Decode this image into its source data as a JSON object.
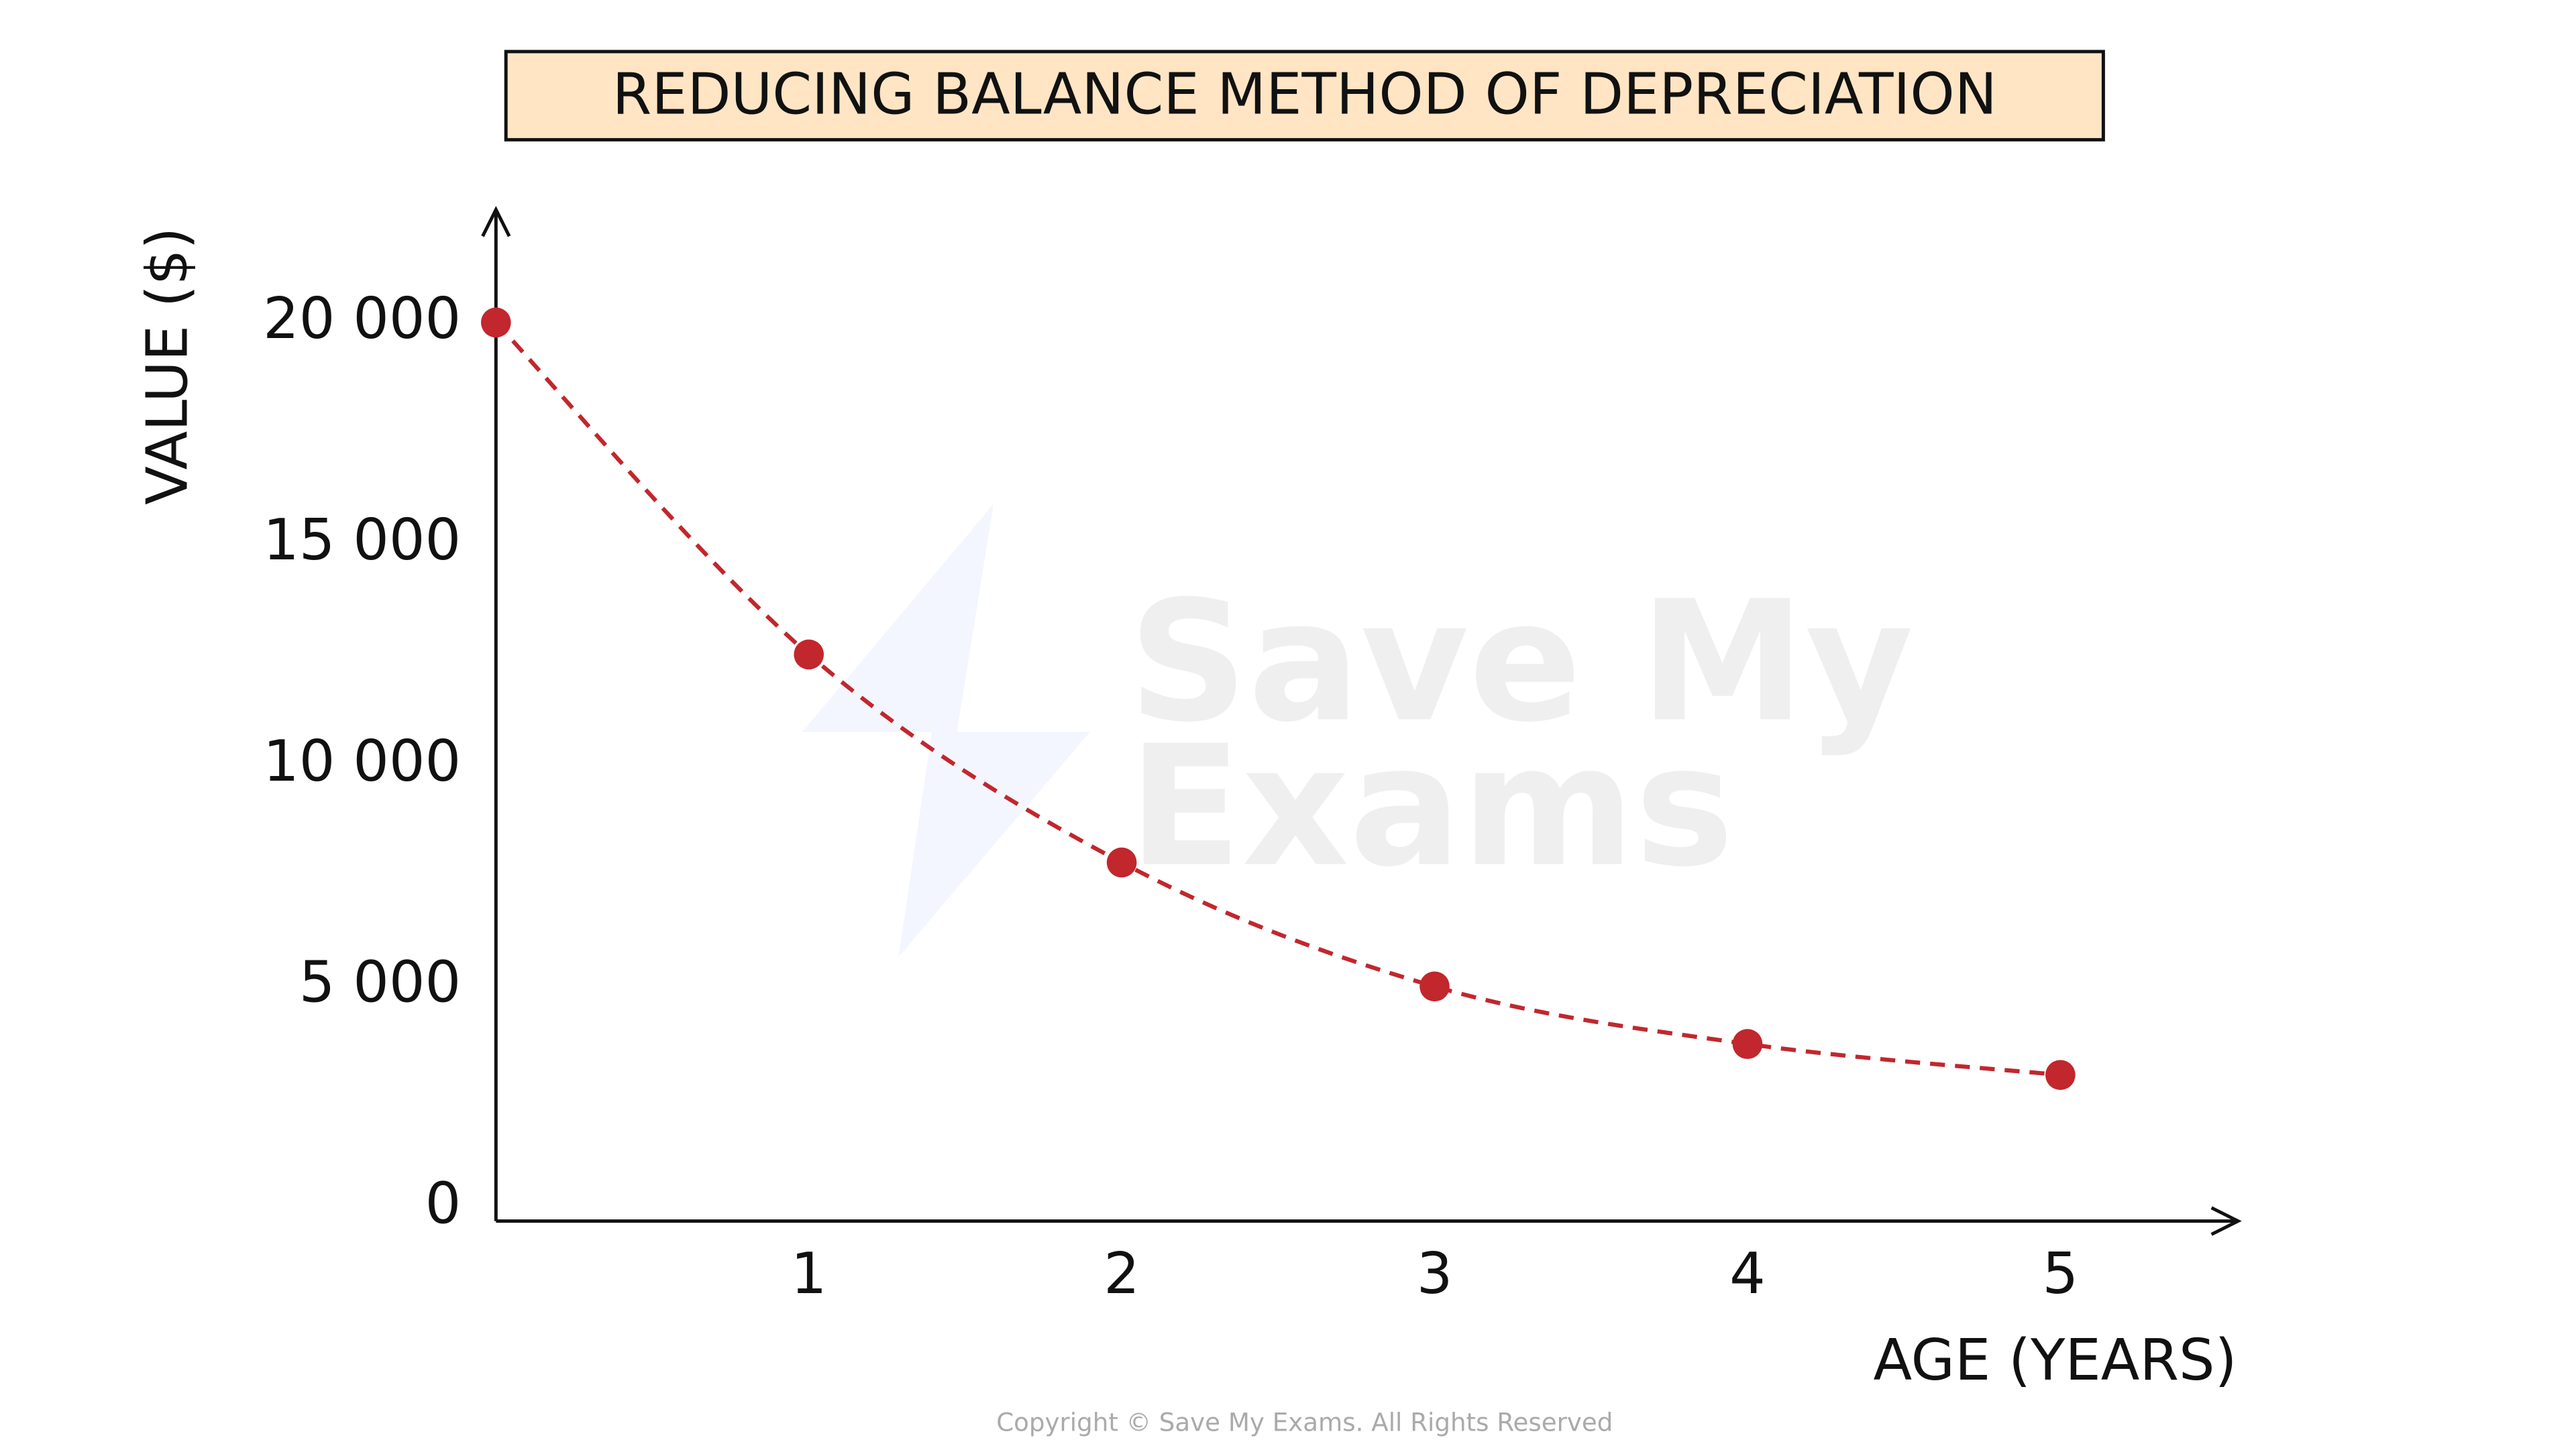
{
  "chart_data": {
    "type": "line",
    "title": "REDUCING BALANCE METHOD OF DEPRECIATION",
    "ylabel": "VALUE ($)",
    "xlabel": "AGE (YEARS)",
    "x": [
      0,
      1,
      2,
      3,
      4,
      5
    ],
    "series": [
      {
        "name": "Value",
        "color": "#c1272d",
        "values": [
          20000,
          12500,
          7800,
          5000,
          3700,
          3000
        ]
      }
    ],
    "xlim": [
      0,
      5.6
    ],
    "ylim": [
      0,
      22400
    ],
    "xticks": [
      1,
      2,
      3,
      4,
      5
    ],
    "yticks": [
      0,
      {
        "value": 5000,
        "label": "5 000"
      },
      {
        "value": 10000,
        "label": "10 000"
      },
      {
        "value": 15000,
        "label": "15 000"
      },
      {
        "value": 20000,
        "label": "20 000"
      }
    ],
    "watermark": [
      "Save My",
      "Exams"
    ],
    "copyright": "Copyright © Save My Exams. All Rights Reserved"
  }
}
